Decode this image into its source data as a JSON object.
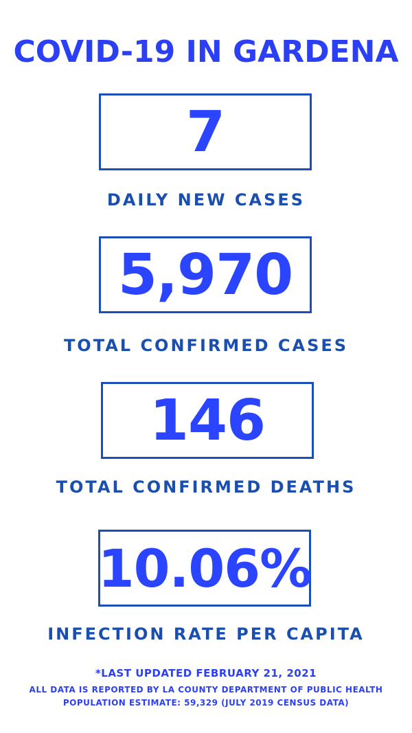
{
  "title": "COVID-19 IN GARDENA",
  "stats": [
    {
      "value": "7",
      "label": "DAILY NEW CASES"
    },
    {
      "value": "5,970",
      "label": "TOTAL CONFIRMED CASES"
    },
    {
      "value": "146",
      "label": "TOTAL CONFIRMED DEATHS"
    },
    {
      "value": "10.06%",
      "label": "INFECTION RATE PER CAPITA"
    }
  ],
  "footer": {
    "updated": "*LAST UPDATED FEBRUARY 21, 2021",
    "source": "ALL DATA IS REPORTED BY LA COUNTY DEPARTMENT OF PUBLIC HEALTH",
    "population": "POPULATION ESTIMATE: 59,329 (JULY 2019 CENSUS DATA)"
  },
  "colors": {
    "title": "#2b3ff5",
    "number": "#2a44ff",
    "label": "#1a4fb0"
  }
}
